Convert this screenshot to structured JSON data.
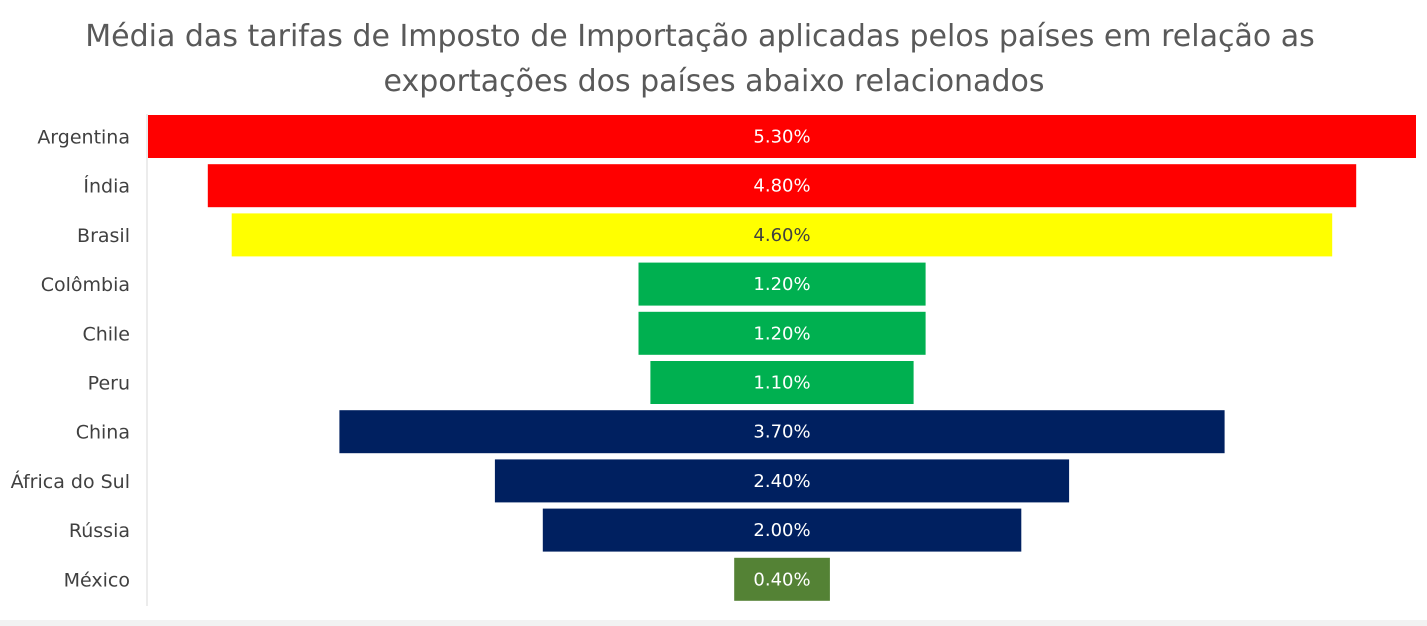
{
  "chart_data": {
    "type": "bar",
    "orientation": "horizontal-funnel",
    "title_lines": [
      "Média das tarifas de Imposto de Importação aplicadas pelos países em relação as",
      "exportações dos países abaixo relacionados"
    ],
    "categories": [
      "Argentina",
      "Índia",
      "Brasil",
      "Colômbia",
      "Chile",
      "Peru",
      "China",
      "África do Sul",
      "Rússia",
      "México"
    ],
    "values": [
      5.3,
      4.8,
      4.6,
      1.2,
      1.2,
      1.1,
      3.7,
      2.4,
      2.0,
      0.4
    ],
    "value_labels": [
      "5.30%",
      "4.80%",
      "4.60%",
      "1.20%",
      "1.20%",
      "1.10%",
      "3.70%",
      "2.40%",
      "2.00%",
      "0.40%"
    ],
    "colors": [
      "#ff0000",
      "#ff0000",
      "#ffff00",
      "#00b050",
      "#00b050",
      "#00b050",
      "#002060",
      "#002060",
      "#002060",
      "#548235"
    ],
    "label_colors": [
      "#ffffff",
      "#ffffff",
      "#404040",
      "#ffffff",
      "#ffffff",
      "#ffffff",
      "#ffffff",
      "#ffffff",
      "#ffffff",
      "#ffffff"
    ],
    "xlabel": "",
    "ylabel": "",
    "legend": "none",
    "grid": false
  }
}
